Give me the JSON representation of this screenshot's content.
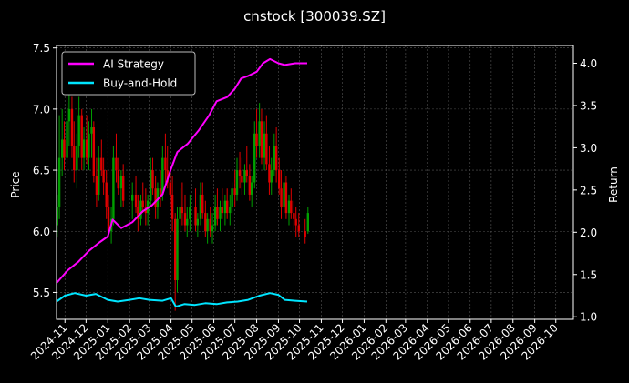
{
  "chart_data": {
    "type": "line",
    "title": "cnstock [300039.SZ]",
    "ylabel": "Price",
    "y2label": "Return",
    "ylim": [
      5.28,
      7.52
    ],
    "y2lim": [
      0.97,
      4.21
    ],
    "yticks": [
      5.5,
      6.0,
      6.5,
      7.0,
      7.5
    ],
    "y2ticks": [
      1.0,
      1.5,
      2.0,
      2.5,
      3.0,
      3.5,
      4.0
    ],
    "ytick_labels": [
      "5.5",
      "6.0",
      "6.5",
      "7.0",
      "7.5"
    ],
    "y2tick_labels": [
      "1.0",
      "1.5",
      "2.0",
      "2.5",
      "3.0",
      "3.5",
      "4.0"
    ],
    "xlim": [
      "2024-10-20",
      "2026-10-26"
    ],
    "x_ticks": [
      "2024-11-01",
      "2024-12-01",
      "2025-01-01",
      "2025-02-01",
      "2025-03-01",
      "2025-04-01",
      "2025-05-01",
      "2025-06-01",
      "2025-07-01",
      "2025-08-01",
      "2025-09-01",
      "2025-10-01",
      "2025-11-01",
      "2025-12-01",
      "2026-01-01",
      "2026-02-01",
      "2026-03-01",
      "2026-04-01",
      "2026-05-01",
      "2026-06-01",
      "2026-07-01",
      "2026-08-01",
      "2026-09-01",
      "2026-10-01"
    ],
    "x_tick_labels": [
      "2024-11",
      "2024-12",
      "2025-01",
      "2025-02",
      "2025-03",
      "2025-04",
      "2025-05",
      "2025-06",
      "2025-07",
      "2025-08",
      "2025-09",
      "2025-10",
      "2025-11",
      "2025-12",
      "2026-01",
      "2026-02",
      "2026-03",
      "2026-04",
      "2026-05",
      "2026-06",
      "2026-07",
      "2026-08",
      "2026-09",
      "2026-10"
    ],
    "grid": true,
    "legend_position": "top-left",
    "colors": {
      "background": "#000000",
      "grid": "#555555",
      "up": "#00a000",
      "down": "#e00000",
      "strategy": "#ff00ff",
      "buyhold": "#00e5ff"
    },
    "series": [
      {
        "name": "AI Strategy",
        "axis": "right",
        "x": [
          "2024-10-20",
          "2024-11-05",
          "2024-11-20",
          "2024-12-05",
          "2024-12-20",
          "2025-01-01",
          "2025-01-08",
          "2025-01-20",
          "2025-02-05",
          "2025-02-20",
          "2025-03-05",
          "2025-03-20",
          "2025-04-01",
          "2025-04-10",
          "2025-04-25",
          "2025-05-10",
          "2025-05-25",
          "2025-06-05",
          "2025-06-20",
          "2025-07-01",
          "2025-07-10",
          "2025-07-20",
          "2025-08-01",
          "2025-08-10",
          "2025-08-20",
          "2025-09-01",
          "2025-09-10",
          "2025-09-25",
          "2025-10-05",
          "2025-10-12"
        ],
        "y": [
          1.4,
          1.55,
          1.65,
          1.78,
          1.88,
          1.95,
          2.15,
          2.05,
          2.12,
          2.25,
          2.32,
          2.45,
          2.75,
          2.95,
          3.05,
          3.2,
          3.38,
          3.55,
          3.6,
          3.7,
          3.82,
          3.85,
          3.9,
          4.0,
          4.05,
          4.0,
          3.98,
          4.0,
          4.0,
          4.0
        ]
      },
      {
        "name": "Buy-and-Hold",
        "axis": "right",
        "x": [
          "2024-10-20",
          "2024-11-01",
          "2024-11-15",
          "2024-12-01",
          "2024-12-15",
          "2025-01-01",
          "2025-01-15",
          "2025-02-01",
          "2025-02-15",
          "2025-03-01",
          "2025-03-20",
          "2025-04-01",
          "2025-04-08",
          "2025-04-20",
          "2025-05-05",
          "2025-05-20",
          "2025-06-05",
          "2025-06-20",
          "2025-07-05",
          "2025-07-20",
          "2025-08-05",
          "2025-08-20",
          "2025-09-01",
          "2025-09-10",
          "2025-09-25",
          "2025-10-12"
        ],
        "y": [
          1.18,
          1.25,
          1.28,
          1.25,
          1.27,
          1.2,
          1.18,
          1.2,
          1.22,
          1.2,
          1.19,
          1.22,
          1.12,
          1.15,
          1.14,
          1.16,
          1.15,
          1.17,
          1.18,
          1.2,
          1.25,
          1.28,
          1.26,
          1.2,
          1.19,
          1.18
        ]
      }
    ],
    "candlesticks_axis": "left",
    "candlesticks": [
      [
        "2024-10-21",
        6.05,
        6.3,
        5.95,
        6.2
      ],
      [
        "2024-10-24",
        6.2,
        6.95,
        6.1,
        6.6
      ],
      [
        "2024-10-28",
        6.6,
        7.0,
        6.45,
        6.75
      ],
      [
        "2024-10-31",
        6.75,
        6.9,
        6.5,
        6.6
      ],
      [
        "2024-11-04",
        6.6,
        7.05,
        6.55,
        6.9
      ],
      [
        "2024-11-07",
        6.9,
        7.15,
        6.7,
        7.0
      ],
      [
        "2024-11-11",
        7.0,
        7.1,
        6.6,
        6.7
      ],
      [
        "2024-11-14",
        6.7,
        6.9,
        6.4,
        6.5
      ],
      [
        "2024-11-18",
        6.5,
        6.8,
        6.35,
        6.7
      ],
      [
        "2024-11-21",
        6.7,
        7.1,
        6.6,
        6.95
      ],
      [
        "2024-11-25",
        6.95,
        7.0,
        6.5,
        6.6
      ],
      [
        "2024-11-28",
        6.6,
        6.85,
        6.5,
        6.75
      ],
      [
        "2024-12-02",
        6.75,
        6.95,
        6.55,
        6.6
      ],
      [
        "2024-12-05",
        6.6,
        6.9,
        6.5,
        6.8
      ],
      [
        "2024-12-09",
        6.8,
        7.0,
        6.6,
        6.85
      ],
      [
        "2024-12-12",
        6.85,
        6.9,
        6.4,
        6.45
      ],
      [
        "2024-12-16",
        6.45,
        6.6,
        6.2,
        6.3
      ],
      [
        "2024-12-19",
        6.3,
        6.7,
        6.25,
        6.6
      ],
      [
        "2024-12-23",
        6.6,
        6.75,
        6.45,
        6.5
      ],
      [
        "2024-12-26",
        6.5,
        6.6,
        6.3,
        6.4
      ],
      [
        "2024-12-30",
        6.4,
        6.5,
        6.1,
        6.2
      ],
      [
        "2025-01-02",
        6.2,
        6.3,
        5.95,
        6.0
      ],
      [
        "2025-01-06",
        6.0,
        6.2,
        5.9,
        6.1
      ],
      [
        "2025-01-09",
        6.1,
        6.7,
        6.05,
        6.6
      ],
      [
        "2025-01-13",
        6.6,
        6.8,
        6.4,
        6.5
      ],
      [
        "2025-01-16",
        6.5,
        6.6,
        6.3,
        6.35
      ],
      [
        "2025-01-20",
        6.35,
        6.5,
        6.2,
        6.45
      ],
      [
        "2025-01-23",
        6.45,
        6.55,
        6.2,
        6.25
      ],
      [
        "2025-02-05",
        6.25,
        6.4,
        6.1,
        6.3
      ],
      [
        "2025-02-10",
        6.3,
        6.45,
        6.15,
        6.2
      ],
      [
        "2025-02-13",
        6.2,
        6.3,
        6.0,
        6.1
      ],
      [
        "2025-02-17",
        6.1,
        6.3,
        6.05,
        6.25
      ],
      [
        "2025-02-20",
        6.25,
        6.4,
        6.15,
        6.2
      ],
      [
        "2025-02-24",
        6.2,
        6.35,
        6.05,
        6.15
      ],
      [
        "2025-02-27",
        6.15,
        6.3,
        6.05,
        6.25
      ],
      [
        "2025-03-03",
        6.25,
        6.6,
        6.2,
        6.5
      ],
      [
        "2025-03-06",
        6.5,
        6.6,
        6.3,
        6.35
      ],
      [
        "2025-03-10",
        6.35,
        6.45,
        6.1,
        6.2
      ],
      [
        "2025-03-13",
        6.2,
        6.4,
        6.1,
        6.35
      ],
      [
        "2025-03-17",
        6.35,
        6.5,
        6.2,
        6.3
      ],
      [
        "2025-03-20",
        6.3,
        6.7,
        6.25,
        6.6
      ],
      [
        "2025-03-24",
        6.6,
        6.8,
        6.4,
        6.5
      ],
      [
        "2025-03-27",
        6.5,
        6.7,
        6.35,
        6.4
      ],
      [
        "2025-03-31",
        6.4,
        6.5,
        6.2,
        6.3
      ],
      [
        "2025-04-03",
        6.3,
        6.45,
        6.0,
        6.1
      ],
      [
        "2025-04-07",
        6.1,
        6.15,
        5.35,
        5.6
      ],
      [
        "2025-04-10",
        5.6,
        6.2,
        5.5,
        6.1
      ],
      [
        "2025-04-14",
        6.1,
        6.35,
        6.0,
        6.2
      ],
      [
        "2025-04-17",
        6.2,
        6.4,
        6.05,
        6.15
      ],
      [
        "2025-04-21",
        6.15,
        6.3,
        6.0,
        6.05
      ],
      [
        "2025-04-24",
        6.05,
        6.2,
        5.95,
        6.1
      ],
      [
        "2025-04-28",
        6.1,
        6.3,
        6.0,
        6.2
      ],
      [
        "2025-05-06",
        6.2,
        6.35,
        6.0,
        6.05
      ],
      [
        "2025-05-09",
        6.05,
        6.15,
        5.95,
        6.1
      ],
      [
        "2025-05-13",
        6.1,
        6.4,
        6.05,
        6.3
      ],
      [
        "2025-05-16",
        6.3,
        6.4,
        6.1,
        6.15
      ],
      [
        "2025-05-20",
        6.15,
        6.25,
        5.95,
        6.0
      ],
      [
        "2025-05-23",
        6.0,
        6.15,
        5.9,
        6.1
      ],
      [
        "2025-05-27",
        6.1,
        6.2,
        5.95,
        6.0
      ],
      [
        "2025-05-30",
        6.0,
        6.15,
        5.9,
        6.05
      ],
      [
        "2025-06-03",
        6.05,
        6.3,
        6.0,
        6.2
      ],
      [
        "2025-06-06",
        6.2,
        6.35,
        6.05,
        6.1
      ],
      [
        "2025-06-10",
        6.1,
        6.25,
        6.0,
        6.2
      ],
      [
        "2025-06-13",
        6.2,
        6.35,
        6.1,
        6.15
      ],
      [
        "2025-06-17",
        6.15,
        6.3,
        6.05,
        6.25
      ],
      [
        "2025-06-20",
        6.25,
        6.35,
        6.1,
        6.15
      ],
      [
        "2025-06-24",
        6.15,
        6.3,
        6.05,
        6.2
      ],
      [
        "2025-06-27",
        6.2,
        6.4,
        6.15,
        6.35
      ],
      [
        "2025-07-01",
        6.35,
        6.5,
        6.2,
        6.3
      ],
      [
        "2025-07-04",
        6.3,
        6.6,
        6.25,
        6.5
      ],
      [
        "2025-07-08",
        6.5,
        6.65,
        6.35,
        6.45
      ],
      [
        "2025-07-11",
        6.45,
        6.6,
        6.3,
        6.4
      ],
      [
        "2025-07-15",
        6.4,
        6.55,
        6.3,
        6.5
      ],
      [
        "2025-07-18",
        6.5,
        6.7,
        6.4,
        6.45
      ],
      [
        "2025-07-22",
        6.45,
        6.55,
        6.25,
        6.3
      ],
      [
        "2025-07-25",
        6.3,
        6.45,
        6.2,
        6.4
      ],
      [
        "2025-07-29",
        6.4,
        6.9,
        6.35,
        6.8
      ],
      [
        "2025-08-01",
        6.8,
        7.0,
        6.6,
        6.7
      ],
      [
        "2025-08-05",
        6.7,
        7.05,
        6.6,
        6.9
      ],
      [
        "2025-08-08",
        6.9,
        7.0,
        6.55,
        6.6
      ],
      [
        "2025-08-12",
        6.6,
        6.9,
        6.5,
        6.8
      ],
      [
        "2025-08-15",
        6.8,
        6.95,
        6.5,
        6.55
      ],
      [
        "2025-08-19",
        6.55,
        6.7,
        6.3,
        6.4
      ],
      [
        "2025-08-22",
        6.4,
        6.6,
        6.3,
        6.5
      ],
      [
        "2025-08-26",
        6.5,
        6.8,
        6.45,
        6.7
      ],
      [
        "2025-08-29",
        6.7,
        6.85,
        6.4,
        6.5
      ],
      [
        "2025-09-02",
        6.5,
        6.6,
        6.3,
        6.35
      ],
      [
        "2025-09-05",
        6.35,
        6.5,
        6.1,
        6.2
      ],
      [
        "2025-09-09",
        6.2,
        6.5,
        6.15,
        6.4
      ],
      [
        "2025-09-12",
        6.4,
        6.45,
        6.1,
        6.15
      ],
      [
        "2025-09-16",
        6.15,
        6.3,
        6.05,
        6.25
      ],
      [
        "2025-09-19",
        6.25,
        6.35,
        6.1,
        6.15
      ],
      [
        "2025-09-23",
        6.15,
        6.25,
        6.0,
        6.1
      ],
      [
        "2025-09-26",
        6.1,
        6.2,
        5.95,
        6.05
      ],
      [
        "2025-09-30",
        6.05,
        6.15,
        5.95,
        6.0
      ],
      [
        "2025-10-09",
        6.0,
        6.1,
        5.9,
        5.95
      ],
      [
        "2025-10-13",
        6.0,
        6.2,
        5.98,
        6.15
      ]
    ]
  }
}
